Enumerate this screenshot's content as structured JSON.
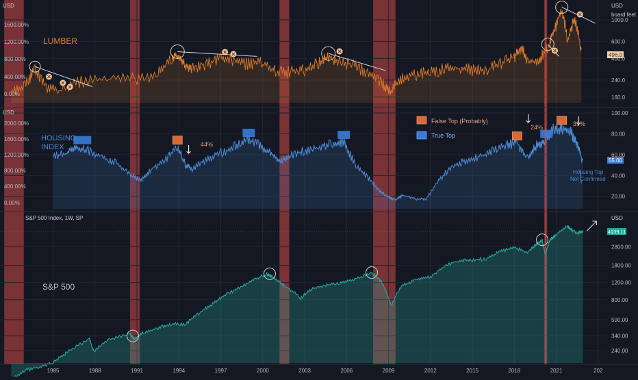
{
  "chart_data": [
    {
      "type": "line",
      "panel": "lumber",
      "title": "LUMBER",
      "left_unit": "USD",
      "right_unit": "USD",
      "right_unit2": "board feet",
      "left_ticks": [
        "1600.00%",
        "1200.00%",
        "800.00%",
        "400.00%",
        "0.00%"
      ],
      "right_ticks": [
        "1000.0",
        "600.0",
        "400.0",
        "240.0",
        "160.0"
      ],
      "last_value": "496.0",
      "color": "#e07d2a",
      "series": [
        {
          "x": [
            1982.0,
            1983.0,
            1983.7,
            1984.5,
            1985.5,
            1987.0,
            1989.0,
            1991.0,
            1992.5,
            1993.5,
            1993.9,
            1994.4,
            1995.0,
            1996.0,
            1997.0,
            1998.0,
            1999.0,
            2000.0,
            2001.0,
            2002.0,
            2003.0,
            2004.0,
            2004.7,
            2005.5,
            2006.5,
            2007.5,
            2008.5,
            2009.2,
            2010.0,
            2011.0,
            2012.0,
            2013.0,
            2014.0,
            2015.0,
            2016.0,
            2017.0,
            2018.0,
            2018.5,
            2019.0,
            2019.8,
            2020.4,
            2020.9,
            2021.4,
            2021.8,
            2022.3,
            2022.8
          ],
          "y": [
            195,
            230,
            330,
            215,
            200,
            250,
            265,
            270,
            300,
            430,
            470,
            360,
            340,
            390,
            430,
            400,
            380,
            390,
            310,
            320,
            330,
            390,
            450,
            390,
            370,
            310,
            240,
            200,
            280,
            300,
            310,
            340,
            340,
            330,
            330,
            380,
            450,
            560,
            390,
            410,
            560,
            890,
            1350,
            650,
            1100,
            496
          ]
        }
      ]
    },
    {
      "type": "line",
      "panel": "housing",
      "title": "HOUSING\nINDEX",
      "left_unit": "USD",
      "left_ticks": [
        "2000.00%",
        "1600.00%",
        "1200.00%",
        "800.00%",
        "400.00%",
        "0.00%"
      ],
      "right_ticks": [
        "100.00",
        "80.00",
        "60.00",
        "40.00",
        "20.00"
      ],
      "last_value": "55.00",
      "color": "#4a8ad4",
      "legend": [
        "False Top (Probably)",
        "True Top"
      ],
      "annotations": [
        "44%",
        "24%",
        "39%",
        "Housing Top\nNot Confirmed"
      ],
      "series": [
        {
          "x": [
            1985.0,
            1986.0,
            1986.7,
            1987.5,
            1988.5,
            1989.5,
            1990.5,
            1991.3,
            1992.0,
            1993.0,
            1993.9,
            1994.5,
            1995.0,
            1996.0,
            1997.0,
            1998.0,
            1998.9,
            1999.7,
            2000.5,
            2001.2,
            2002.0,
            2003.0,
            2004.0,
            2005.0,
            2005.8,
            2006.6,
            2007.5,
            2008.3,
            2009.0,
            2009.5,
            2010.0,
            2011.0,
            2011.7,
            2012.5,
            2013.5,
            2014.5,
            2015.5,
            2016.5,
            2017.5,
            2018.2,
            2019.0,
            2019.6,
            2020.2,
            2020.9,
            2021.5,
            2022.0,
            2022.5,
            2022.9
          ],
          "y": [
            60,
            64,
            70,
            66,
            60,
            54,
            42,
            36,
            48,
            56,
            70,
            52,
            48,
            58,
            64,
            70,
            77,
            72,
            64,
            55,
            62,
            66,
            70,
            74,
            75,
            52,
            40,
            27,
            20,
            17,
            22,
            18,
            18,
            35,
            51,
            56,
            60,
            67,
            72,
            74,
            58,
            72,
            76,
            89,
            88,
            85,
            74,
            55
          ]
        }
      ]
    },
    {
      "type": "area",
      "panel": "sp500",
      "title": "S&P 500",
      "header": "S&P 500 Index, 1W, SP",
      "right_unit": "USD",
      "right_ticks": [
        "2800.00",
        "1800.00",
        "1200.00",
        "800.00",
        "500.00",
        "340.00",
        "240.00"
      ],
      "last_value": "4139.11",
      "color": "#26a69a",
      "series": [
        {
          "x": [
            1982.0,
            1983.0,
            1984.0,
            1985.0,
            1986.0,
            1987.6,
            1987.9,
            1989.0,
            1990.5,
            1990.8,
            1991.5,
            1992.5,
            1993.5,
            1994.5,
            1995.5,
            1996.5,
            1997.5,
            1998.5,
            1999.5,
            2000.3,
            2000.7,
            2001.5,
            2002.7,
            2003.5,
            2004.5,
            2005.5,
            2006.5,
            2007.8,
            2008.5,
            2009.2,
            2010.0,
            2011.0,
            2012.0,
            2013.0,
            2014.0,
            2015.0,
            2016.0,
            2017.0,
            2018.0,
            2018.9,
            2019.5,
            2020.0,
            2020.2,
            2020.6,
            2021.0,
            2021.8,
            2022.0,
            2022.5,
            2022.9
          ],
          "y": [
            120,
            155,
            165,
            185,
            235,
            320,
            240,
            320,
            360,
            320,
            380,
            420,
            460,
            460,
            600,
            750,
            950,
            1100,
            1350,
            1480,
            1400,
            1150,
            850,
            1050,
            1150,
            1220,
            1320,
            1520,
            1250,
            700,
            1150,
            1300,
            1400,
            1800,
            2050,
            2080,
            2150,
            2550,
            2800,
            2500,
            2950,
            3300,
            2400,
            3400,
            3800,
            4700,
            4400,
            3900,
            4139
          ]
        }
      ]
    }
  ],
  "x_axis_labels": [
    "1985",
    "1988",
    "1991",
    "1994",
    "1997",
    "2000",
    "2003",
    "2006",
    "2009",
    "2012",
    "2015",
    "2018",
    "2021",
    "202"
  ],
  "recessions": [
    [
      1981.5,
      1982.9
    ],
    [
      1990.5,
      1991.2
    ],
    [
      2001.2,
      2001.9
    ],
    [
      2007.9,
      2009.5
    ],
    [
      2020.15,
      2020.35
    ]
  ],
  "colors": {
    "background": "#141823",
    "recession": "#b84242",
    "lumber": "#e07d2a",
    "housing": "#4a8ad4",
    "sp500": "#26a69a",
    "false_top": "#d86a3a",
    "true_top": "#3a7bd5"
  }
}
